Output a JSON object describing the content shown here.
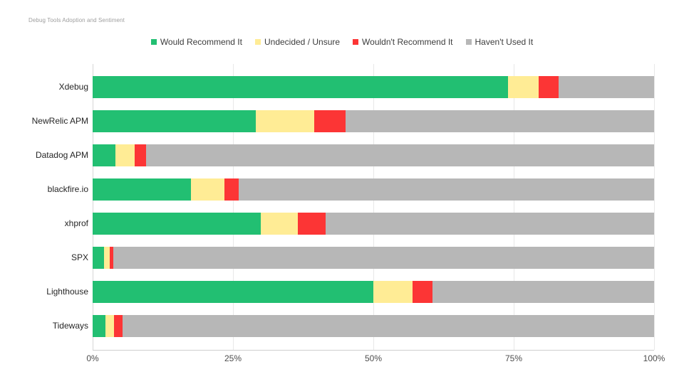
{
  "chart_data": {
    "type": "bar",
    "orientation": "horizontal",
    "stacked": true,
    "title": "Debug Tools Adoption and Sentiment",
    "categories": [
      "Xdebug",
      "NewRelic APM",
      "Datadog APM",
      "blackfire.io",
      "xhprof",
      "SPX",
      "Lighthouse",
      "Tideways"
    ],
    "series": [
      {
        "name": "Would Recommend It",
        "color": "#22bf72",
        "values": [
          74,
          29,
          4,
          17.5,
          30,
          2,
          50,
          2.3
        ]
      },
      {
        "name": "Undecided / Unsure",
        "color": "#ffec95",
        "values": [
          5.5,
          10.5,
          3.5,
          6,
          6.5,
          1,
          7,
          1.5
        ]
      },
      {
        "name": "Wouldn't Recommend It",
        "color": "#fc3535",
        "values": [
          3.5,
          5.5,
          2,
          2.5,
          5,
          0.7,
          3.5,
          1.5
        ]
      },
      {
        "name": "Haven't Used It",
        "color": "#b7b7b7",
        "values": [
          17,
          55,
          90.5,
          74,
          58.5,
          96.3,
          39.5,
          94.7
        ]
      }
    ],
    "x_axis": {
      "min": 0,
      "max": 100,
      "ticks": [
        "0%",
        "25%",
        "50%",
        "75%",
        "100%"
      ]
    },
    "legend_position": "top",
    "grid": "vertical",
    "colors": {
      "title_text": "#9e9e9e",
      "legend_text": "#3c3c3c",
      "axis_text": "#4d4d4d",
      "category_text": "#262626",
      "gridline": "#e8e8e8",
      "background": "#ffffff"
    }
  }
}
